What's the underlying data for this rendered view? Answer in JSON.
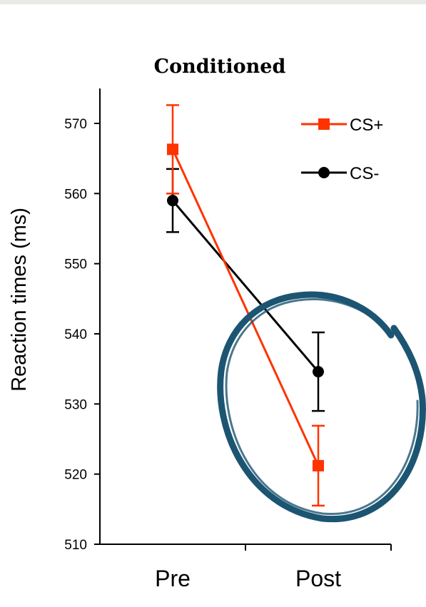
{
  "chart_data": {
    "type": "line",
    "title": "Conditioned",
    "xlabel": "",
    "ylabel": "Reaction times (ms)",
    "categories": [
      "Pre",
      "Post"
    ],
    "ylim": [
      510,
      575
    ],
    "yticks": [
      510,
      520,
      530,
      540,
      550,
      560,
      570
    ],
    "grid": false,
    "legend_position": "top-right",
    "series": [
      {
        "name": "CS+",
        "color": "#ff3300",
        "marker": "square",
        "values": [
          566.3,
          521.2
        ],
        "error": [
          6.3,
          5.7
        ]
      },
      {
        "name": "CS-",
        "color": "#000000",
        "marker": "circle",
        "values": [
          559.0,
          534.6
        ],
        "error": [
          4.5,
          5.6
        ]
      }
    ],
    "annotation": {
      "shape": "hand-drawn circle around Post values",
      "color": "#1c5572"
    }
  },
  "colors": {
    "top_strip": "#e9e9e6",
    "annotation_circle": "#1c5572"
  }
}
